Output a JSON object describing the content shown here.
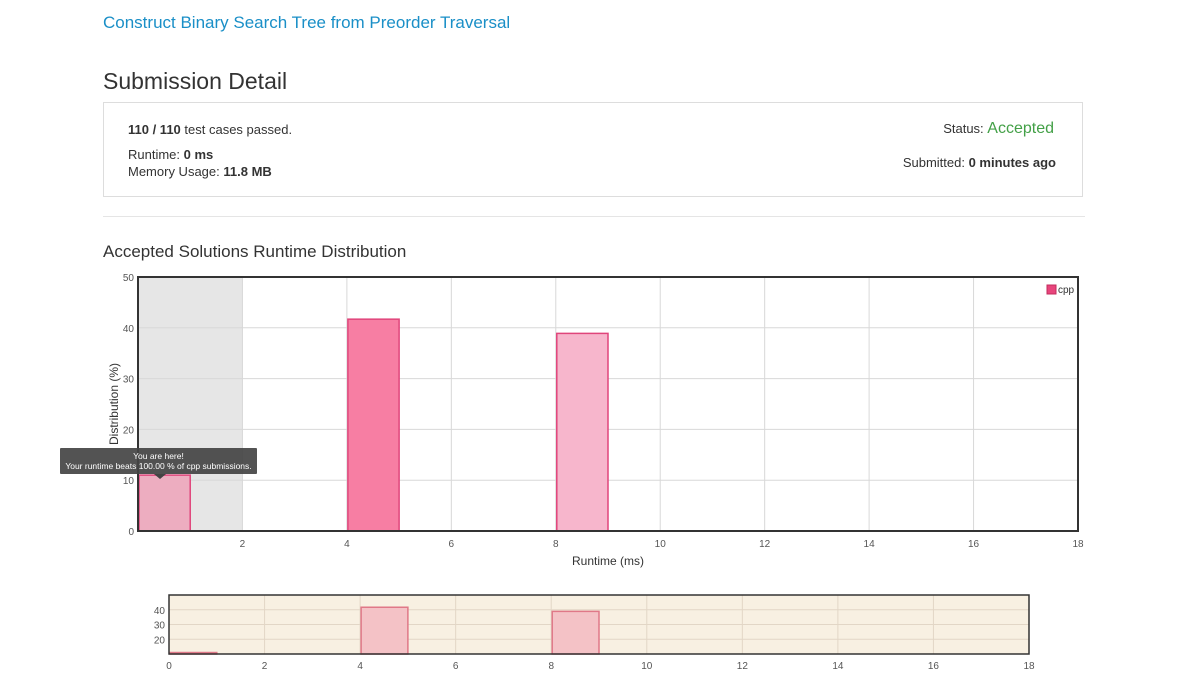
{
  "problem": {
    "title": "Construct Binary Search Tree from Preorder Traversal"
  },
  "page": {
    "title": "Submission Detail"
  },
  "submission": {
    "tests_passed": "110 / 110",
    "tests_suffix": " test cases passed.",
    "runtime_label": "Runtime: ",
    "runtime_value": "0 ms",
    "memory_label": "Memory Usage: ",
    "memory_value": "11.8 MB",
    "status_label": "Status: ",
    "status_value": "Accepted",
    "submitted_label": "Submitted: ",
    "submitted_value": "0 minutes ago"
  },
  "distribution": {
    "title": "Accepted Solutions Runtime Distribution"
  },
  "tooltip": {
    "line1": "You are here!",
    "line2": "Your runtime beats 100.00 % of cpp submissions."
  },
  "colors": {
    "accent_link": "#1a8fc7",
    "accepted": "#43a047",
    "bar_dark": "#f77ea3",
    "bar_light": "#f7b6cc",
    "bar_mine": "#edadc0",
    "highlight": "#e6e6e6",
    "nav_bg": "#f8f0e2",
    "nav_bar": "#f4c2c6"
  },
  "chart_data": [
    {
      "type": "bar",
      "xlabel": "Runtime (ms)",
      "ylabel": "Distribution (%)",
      "xlim": [
        0,
        18
      ],
      "ylim": [
        0,
        50
      ],
      "xticks": [
        2,
        4,
        6,
        8,
        10,
        12,
        14,
        16,
        18
      ],
      "yticks": [
        0,
        10,
        20,
        30,
        40,
        50
      ],
      "legend": {
        "label": "cpp",
        "position": "top-right"
      },
      "grid": true,
      "highlight_range": [
        0,
        2
      ],
      "bars": [
        {
          "x": 0,
          "width": 1,
          "value": 11,
          "style": "mine"
        },
        {
          "x": 4,
          "width": 1,
          "value": 41.7,
          "style": "dark"
        },
        {
          "x": 8,
          "width": 1,
          "value": 38.9,
          "style": "light"
        }
      ]
    },
    {
      "type": "bar",
      "xlim": [
        0,
        18
      ],
      "ylim": [
        10,
        50
      ],
      "xticks": [
        0,
        2,
        4,
        6,
        8,
        10,
        12,
        14,
        16,
        18
      ],
      "yticks": [
        20,
        30,
        40
      ],
      "grid": true,
      "bars": [
        {
          "x": 0,
          "width": 1,
          "value": 11
        },
        {
          "x": 4,
          "width": 1,
          "value": 41.7
        },
        {
          "x": 8,
          "width": 1,
          "value": 38.9
        }
      ]
    }
  ]
}
